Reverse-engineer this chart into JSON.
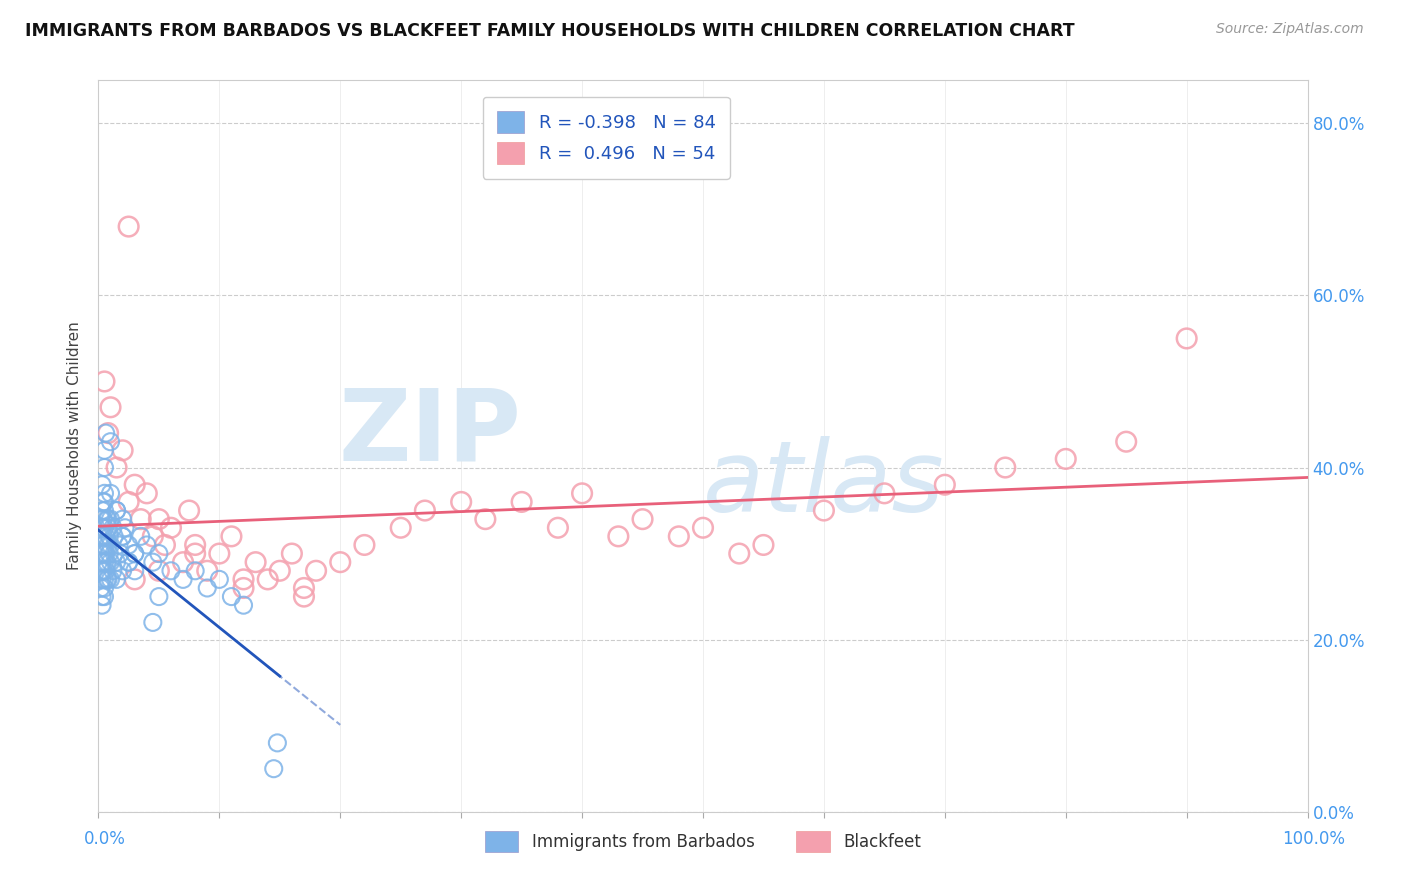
{
  "title": "IMMIGRANTS FROM BARBADOS VS BLACKFEET FAMILY HOUSEHOLDS WITH CHILDREN CORRELATION CHART",
  "source": "Source: ZipAtlas.com",
  "ylabel": "Family Households with Children",
  "xlim": [
    0,
    100
  ],
  "ylim": [
    0,
    85
  ],
  "ytick_positions": [
    0,
    20,
    40,
    60,
    80
  ],
  "ytick_labels_right": [
    "0.0%",
    "20.0%",
    "40.0%",
    "60.0%",
    "80.0%"
  ],
  "blue_color": "#7EB3E8",
  "pink_color": "#F4A0AE",
  "line_blue_color": "#2255BB",
  "line_pink_color": "#E8607A",
  "r_blue": "-0.398",
  "n_blue": "84",
  "r_pink": "0.496",
  "n_pink": "54",
  "blue_x": [
    0.2,
    0.2,
    0.2,
    0.2,
    0.2,
    0.3,
    0.3,
    0.3,
    0.3,
    0.3,
    0.3,
    0.3,
    0.4,
    0.4,
    0.4,
    0.4,
    0.5,
    0.5,
    0.5,
    0.5,
    0.5,
    0.5,
    0.5,
    0.5,
    0.5,
    0.6,
    0.6,
    0.6,
    0.7,
    0.7,
    0.7,
    0.8,
    0.8,
    0.8,
    0.9,
    0.9,
    1.0,
    1.0,
    1.0,
    1.0,
    1.2,
    1.2,
    1.3,
    1.3,
    1.5,
    1.5,
    1.5,
    1.7,
    1.8,
    2.0,
    2.0,
    2.0,
    2.2,
    2.5,
    2.5,
    3.0,
    3.0,
    3.5,
    4.0,
    4.5,
    5.0,
    6.0,
    7.0,
    8.0,
    9.0,
    10.0,
    11.0,
    12.0,
    0.3,
    0.4,
    0.5,
    0.5,
    0.6,
    0.8,
    1.0,
    1.5,
    2.0,
    3.0,
    5.0,
    14.5,
    14.8,
    4.5,
    2.5,
    1.0
  ],
  "blue_y": [
    32,
    30,
    28,
    34,
    26,
    31,
    29,
    27,
    33,
    35,
    25,
    24,
    32,
    30,
    28,
    34,
    33,
    31,
    29,
    27,
    35,
    25,
    36,
    26,
    37,
    32,
    30,
    28,
    34,
    27,
    29,
    33,
    31,
    27,
    30,
    32,
    34,
    29,
    27,
    31,
    33,
    28,
    30,
    32,
    35,
    27,
    29,
    31,
    30,
    34,
    28,
    32,
    33,
    29,
    31,
    30,
    28,
    32,
    31,
    29,
    30,
    28,
    27,
    28,
    26,
    27,
    25,
    24,
    38,
    36,
    40,
    42,
    44,
    34,
    37,
    35,
    32,
    30,
    25,
    5,
    8,
    22,
    29,
    43
  ],
  "pink_x": [
    0.5,
    0.8,
    1.0,
    1.5,
    2.0,
    2.5,
    3.0,
    3.5,
    4.0,
    4.5,
    5.0,
    5.5,
    6.0,
    7.0,
    7.5,
    8.0,
    9.0,
    10.0,
    11.0,
    12.0,
    13.0,
    14.0,
    15.0,
    16.0,
    17.0,
    18.0,
    20.0,
    22.0,
    25.0,
    27.0,
    30.0,
    32.0,
    35.0,
    38.0,
    40.0,
    43.0,
    45.0,
    48.0,
    50.0,
    53.0,
    55.0,
    60.0,
    65.0,
    70.0,
    75.0,
    80.0,
    85.0,
    90.0,
    3.0,
    5.0,
    8.0,
    12.0,
    17.0,
    2.5
  ],
  "pink_y": [
    50,
    44,
    47,
    40,
    42,
    36,
    38,
    34,
    37,
    32,
    34,
    31,
    33,
    29,
    35,
    31,
    28,
    30,
    32,
    27,
    29,
    27,
    28,
    30,
    26,
    28,
    29,
    31,
    33,
    35,
    36,
    34,
    36,
    33,
    37,
    32,
    34,
    32,
    33,
    30,
    31,
    35,
    37,
    38,
    40,
    41,
    43,
    55,
    27,
    28,
    30,
    26,
    25,
    68
  ]
}
